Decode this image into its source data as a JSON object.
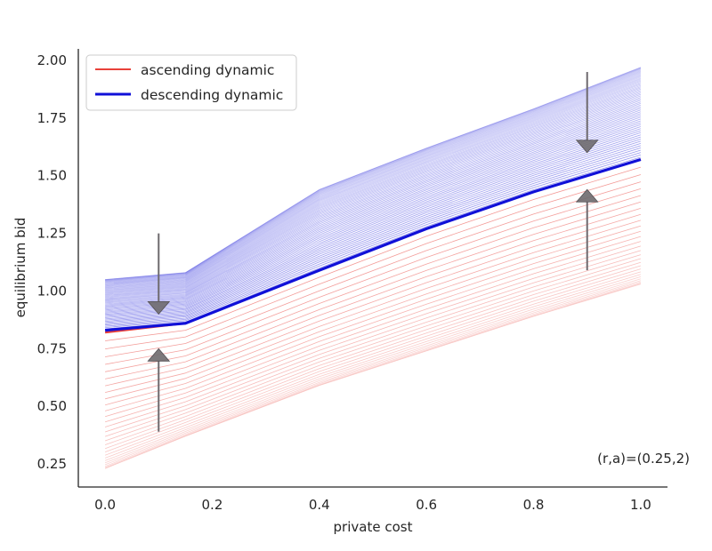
{
  "chart_data": {
    "type": "line",
    "xlabel": "private cost",
    "ylabel": "equilibrium bid",
    "xlim": [
      -0.05,
      1.05
    ],
    "ylim": [
      0.15,
      2.05
    ],
    "xticks": [
      "0.0",
      "0.2",
      "0.4",
      "0.6",
      "0.8",
      "1.0"
    ],
    "yticks": [
      "0.25",
      "0.50",
      "0.75",
      "1.00",
      "1.25",
      "1.50",
      "1.75",
      "2.00"
    ],
    "legend_position": "top-left",
    "annotation": "(r,a)=(0.25,2)",
    "colors": {
      "ascending": "#e8413a",
      "descending": "#1010d8",
      "arrow": "#6e6a6e"
    },
    "series": [
      {
        "name": "ascending dynamic",
        "x": [
          0.0,
          0.15,
          0.4,
          0.6,
          0.8,
          1.0
        ],
        "y_start": [
          0.23,
          0.37,
          0.59,
          0.74,
          0.89,
          1.03
        ],
        "y_end": [
          0.82,
          0.86,
          1.09,
          1.27,
          1.43,
          1.57
        ],
        "n_iterations": 30
      },
      {
        "name": "descending dynamic",
        "x": [
          0.0,
          0.15,
          0.4,
          0.6,
          0.8,
          1.0
        ],
        "y_start": [
          1.05,
          1.08,
          1.44,
          1.62,
          1.79,
          1.97
        ],
        "y_end": [
          0.83,
          0.86,
          1.09,
          1.27,
          1.43,
          1.57
        ],
        "n_iterations": 70
      }
    ],
    "arrows": [
      {
        "x": 0.1,
        "y_from": 1.25,
        "y_to": 0.9
      },
      {
        "x": 0.1,
        "y_from": 0.39,
        "y_to": 0.75
      },
      {
        "x": 0.9,
        "y_from": 1.95,
        "y_to": 1.6
      },
      {
        "x": 0.9,
        "y_from": 1.09,
        "y_to": 1.44
      }
    ]
  }
}
